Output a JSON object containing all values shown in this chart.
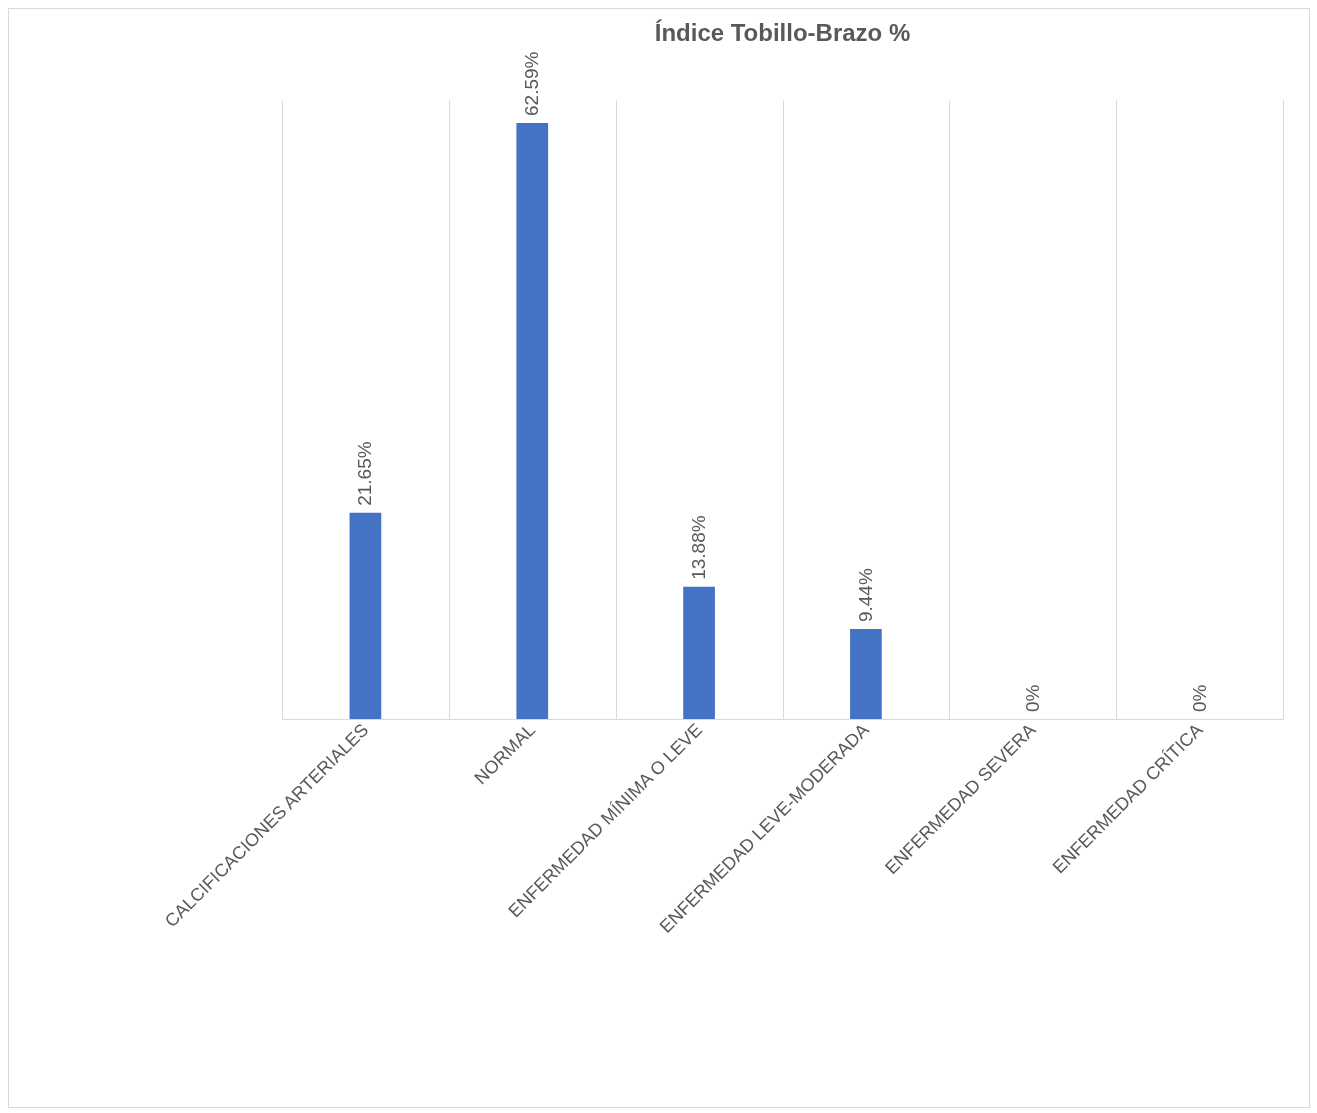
{
  "chart_data": {
    "type": "bar",
    "title": "Índice Tobillo-Brazo  %",
    "categories": [
      "CALCIFICACIONES ARTERIALES",
      "NORMAL",
      "ENFERMEDAD MÍNIMA O LEVE",
      "ENFERMEDAD LEVE-MODERADA",
      "ENFERMEDAD SEVERA",
      "ENFERMEDAD CRÍTICA"
    ],
    "values": [
      21.65,
      62.59,
      13.88,
      9.44,
      0,
      0
    ],
    "value_labels": [
      "21.65%",
      "62.59%",
      "13.88%",
      "9.44%",
      "0%",
      "0%"
    ],
    "color": "#4472c4",
    "grid": "x"
  }
}
